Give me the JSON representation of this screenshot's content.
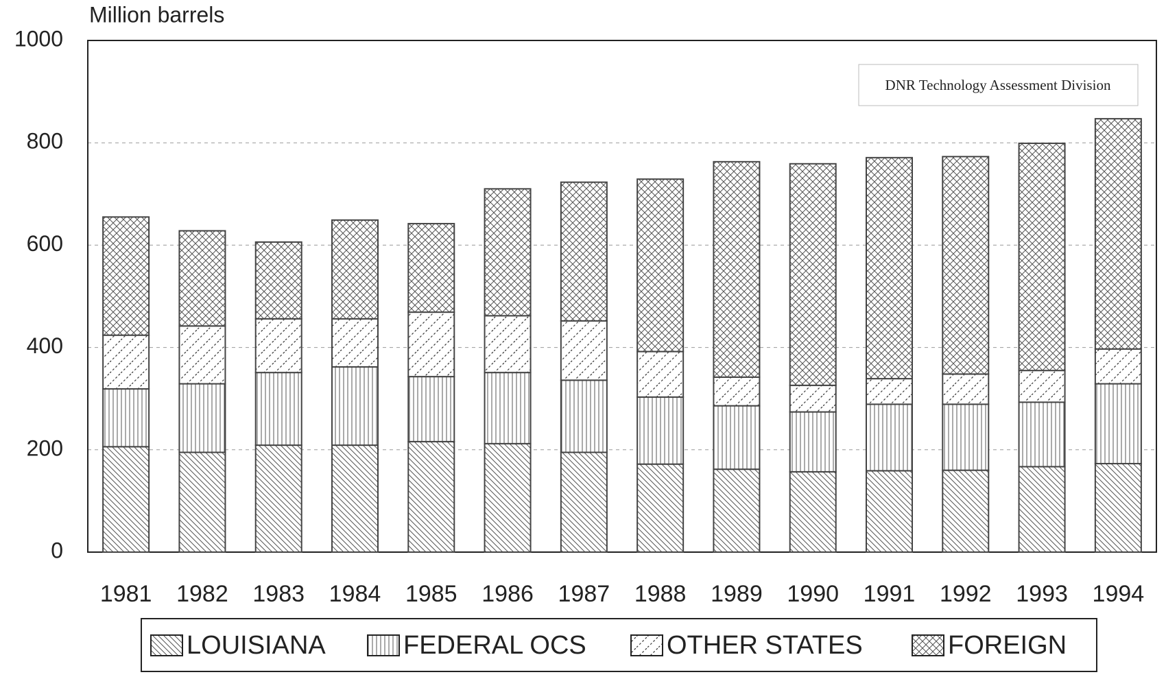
{
  "chart_data": {
    "type": "stacked_bar",
    "y_label": "Million barrels",
    "annotation": "DNR Technology Assessment Division",
    "categories": [
      "1981",
      "1982",
      "1983",
      "1984",
      "1985",
      "1986",
      "1987",
      "1988",
      "1989",
      "1990",
      "1991",
      "1992",
      "1993",
      "1994"
    ],
    "series": [
      {
        "name": "LOUISIANA",
        "color": "#444444",
        "hatch": "backslash",
        "values": [
          206,
          195,
          209,
          209,
          216,
          212,
          195,
          172,
          162,
          157,
          159,
          160,
          167,
          173
        ]
      },
      {
        "name": "FEDERAL OCS",
        "color": "#444444",
        "hatch": "vertical",
        "values": [
          113,
          134,
          142,
          153,
          127,
          139,
          141,
          131,
          124,
          117,
          130,
          129,
          126,
          156
        ]
      },
      {
        "name": "OTHER STATES",
        "color": "#444444",
        "hatch": "dashed-slash",
        "values": [
          105,
          113,
          105,
          94,
          126,
          111,
          116,
          89,
          56,
          52,
          50,
          59,
          62,
          68
        ]
      },
      {
        "name": "FOREIGN",
        "color": "#444444",
        "hatch": "cross",
        "values": [
          231,
          186,
          150,
          193,
          173,
          248,
          271,
          337,
          421,
          433,
          432,
          425,
          444,
          450
        ]
      }
    ],
    "ylim": [
      0,
      1000
    ],
    "yticks": [
      0,
      200,
      400,
      600,
      800,
      1000
    ],
    "grid": true,
    "legend": "bottom"
  }
}
